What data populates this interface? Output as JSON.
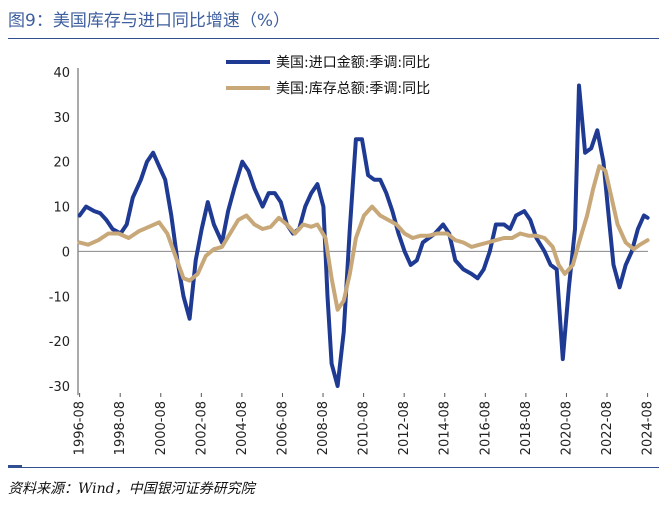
{
  "page": {
    "title": "图9：美国库存与进口同比增速（%）",
    "source": "资料来源：Wind，中国银河证券研究院"
  },
  "chart_data": {
    "type": "line",
    "title": "图9：美国库存与进口同比增速（%）",
    "xlabel": "",
    "ylabel": "",
    "ylim": [
      -30,
      40
    ],
    "yticks": [
      -30,
      -20,
      -10,
      0,
      10,
      20,
      30,
      40
    ],
    "xlim": [
      1996.5,
      2024.6
    ],
    "xticks": [
      {
        "label": "1996-08",
        "x": 1996.58
      },
      {
        "label": "1998-08",
        "x": 1998.58
      },
      {
        "label": "2000-08",
        "x": 2000.58
      },
      {
        "label": "2002-08",
        "x": 2002.58
      },
      {
        "label": "2004-08",
        "x": 2004.58
      },
      {
        "label": "2006-08",
        "x": 2006.58
      },
      {
        "label": "2008-08",
        "x": 2008.58
      },
      {
        "label": "2010-08",
        "x": 2010.58
      },
      {
        "label": "2012-08",
        "x": 2012.58
      },
      {
        "label": "2014-08",
        "x": 2014.58
      },
      {
        "label": "2016-08",
        "x": 2016.58
      },
      {
        "label": "2018-08",
        "x": 2018.58
      },
      {
        "label": "2020-08",
        "x": 2020.58
      },
      {
        "label": "2022-08",
        "x": 2022.58
      },
      {
        "label": "2024-08",
        "x": 2024.58
      }
    ],
    "legend_position": "top-center",
    "series": [
      {
        "name": "美国:进口金额:季调:同比",
        "color": "#1f3a93",
        "points": [
          [
            1996.58,
            8
          ],
          [
            1996.9,
            10
          ],
          [
            1997.3,
            9
          ],
          [
            1997.6,
            8.5
          ],
          [
            1997.9,
            7
          ],
          [
            1998.2,
            5
          ],
          [
            1998.6,
            4
          ],
          [
            1998.9,
            6
          ],
          [
            1999.2,
            12
          ],
          [
            1999.6,
            16
          ],
          [
            1999.9,
            20
          ],
          [
            2000.2,
            22
          ],
          [
            2000.5,
            19
          ],
          [
            2000.8,
            16
          ],
          [
            2001.1,
            8
          ],
          [
            2001.4,
            -2
          ],
          [
            2001.7,
            -10
          ],
          [
            2002.0,
            -15
          ],
          [
            2002.3,
            -2
          ],
          [
            2002.6,
            5
          ],
          [
            2002.9,
            11
          ],
          [
            2003.2,
            6
          ],
          [
            2003.6,
            2
          ],
          [
            2003.9,
            9
          ],
          [
            2004.2,
            14
          ],
          [
            2004.6,
            20
          ],
          [
            2004.9,
            18
          ],
          [
            2005.2,
            14
          ],
          [
            2005.6,
            10
          ],
          [
            2005.9,
            13
          ],
          [
            2006.2,
            13
          ],
          [
            2006.5,
            11
          ],
          [
            2006.8,
            6
          ],
          [
            2007.1,
            4
          ],
          [
            2007.4,
            5
          ],
          [
            2007.7,
            10
          ],
          [
            2008.0,
            13
          ],
          [
            2008.3,
            15
          ],
          [
            2008.6,
            10
          ],
          [
            2008.8,
            -10
          ],
          [
            2009.0,
            -25
          ],
          [
            2009.3,
            -30
          ],
          [
            2009.6,
            -18
          ],
          [
            2009.9,
            5
          ],
          [
            2010.2,
            25
          ],
          [
            2010.5,
            25
          ],
          [
            2010.8,
            17
          ],
          [
            2011.1,
            16
          ],
          [
            2011.4,
            16
          ],
          [
            2011.7,
            13
          ],
          [
            2012.0,
            9
          ],
          [
            2012.3,
            4
          ],
          [
            2012.6,
            0
          ],
          [
            2012.9,
            -3
          ],
          [
            2013.2,
            -2
          ],
          [
            2013.5,
            2
          ],
          [
            2013.8,
            3
          ],
          [
            2014.1,
            4
          ],
          [
            2014.5,
            6
          ],
          [
            2014.8,
            4
          ],
          [
            2015.1,
            -2
          ],
          [
            2015.5,
            -4
          ],
          [
            2015.9,
            -5
          ],
          [
            2016.2,
            -6
          ],
          [
            2016.5,
            -4
          ],
          [
            2016.8,
            0
          ],
          [
            2017.1,
            6
          ],
          [
            2017.5,
            6
          ],
          [
            2017.8,
            5
          ],
          [
            2018.1,
            8
          ],
          [
            2018.5,
            9
          ],
          [
            2018.8,
            7
          ],
          [
            2019.1,
            3
          ],
          [
            2019.5,
            0
          ],
          [
            2019.8,
            -3
          ],
          [
            2020.1,
            -4
          ],
          [
            2020.4,
            -24
          ],
          [
            2020.7,
            -8
          ],
          [
            2021.0,
            5
          ],
          [
            2021.2,
            37
          ],
          [
            2021.5,
            22
          ],
          [
            2021.8,
            23
          ],
          [
            2022.1,
            27
          ],
          [
            2022.4,
            20
          ],
          [
            2022.7,
            6
          ],
          [
            2022.9,
            -3
          ],
          [
            2023.2,
            -8
          ],
          [
            2023.5,
            -3
          ],
          [
            2023.8,
            0
          ],
          [
            2024.1,
            5
          ],
          [
            2024.4,
            8
          ],
          [
            2024.58,
            7.5
          ]
        ]
      },
      {
        "name": "美国:库存总额:季调:同比",
        "color": "#c8a878",
        "points": [
          [
            1996.58,
            2
          ],
          [
            1997.0,
            1.5
          ],
          [
            1997.5,
            2.5
          ],
          [
            1998.0,
            4
          ],
          [
            1998.5,
            4
          ],
          [
            1999.0,
            3
          ],
          [
            1999.5,
            4.5
          ],
          [
            2000.0,
            5.5
          ],
          [
            2000.5,
            6.5
          ],
          [
            2000.9,
            4
          ],
          [
            2001.3,
            -1
          ],
          [
            2001.7,
            -6
          ],
          [
            2002.0,
            -6.5
          ],
          [
            2002.4,
            -5
          ],
          [
            2002.8,
            -1
          ],
          [
            2003.2,
            0.5
          ],
          [
            2003.6,
            1
          ],
          [
            2004.0,
            4
          ],
          [
            2004.4,
            7
          ],
          [
            2004.8,
            8
          ],
          [
            2005.2,
            6
          ],
          [
            2005.6,
            5
          ],
          [
            2006.0,
            5.5
          ],
          [
            2006.4,
            7.5
          ],
          [
            2006.8,
            6
          ],
          [
            2007.2,
            4
          ],
          [
            2007.6,
            6
          ],
          [
            2008.0,
            5.5
          ],
          [
            2008.3,
            6
          ],
          [
            2008.7,
            3
          ],
          [
            2009.0,
            -6
          ],
          [
            2009.3,
            -13
          ],
          [
            2009.6,
            -11
          ],
          [
            2009.9,
            -5
          ],
          [
            2010.2,
            3
          ],
          [
            2010.6,
            8
          ],
          [
            2011.0,
            10
          ],
          [
            2011.4,
            8
          ],
          [
            2011.8,
            7
          ],
          [
            2012.2,
            6
          ],
          [
            2012.6,
            4
          ],
          [
            2013.0,
            3
          ],
          [
            2013.4,
            3.5
          ],
          [
            2013.8,
            3.5
          ],
          [
            2014.2,
            4
          ],
          [
            2014.7,
            4
          ],
          [
            2015.1,
            2.5
          ],
          [
            2015.5,
            2
          ],
          [
            2015.9,
            1
          ],
          [
            2016.3,
            1.5
          ],
          [
            2016.7,
            2
          ],
          [
            2017.1,
            2.5
          ],
          [
            2017.5,
            3
          ],
          [
            2017.9,
            3
          ],
          [
            2018.3,
            4
          ],
          [
            2018.7,
            3.5
          ],
          [
            2019.1,
            3.5
          ],
          [
            2019.5,
            3
          ],
          [
            2019.9,
            1
          ],
          [
            2020.2,
            -3
          ],
          [
            2020.5,
            -5
          ],
          [
            2020.9,
            -3
          ],
          [
            2021.2,
            2
          ],
          [
            2021.6,
            8
          ],
          [
            2021.9,
            14
          ],
          [
            2022.2,
            19
          ],
          [
            2022.5,
            18
          ],
          [
            2022.8,
            12
          ],
          [
            2023.1,
            6
          ],
          [
            2023.5,
            2
          ],
          [
            2023.9,
            0.5
          ],
          [
            2024.2,
            1.5
          ],
          [
            2024.58,
            2.5
          ]
        ]
      }
    ]
  }
}
